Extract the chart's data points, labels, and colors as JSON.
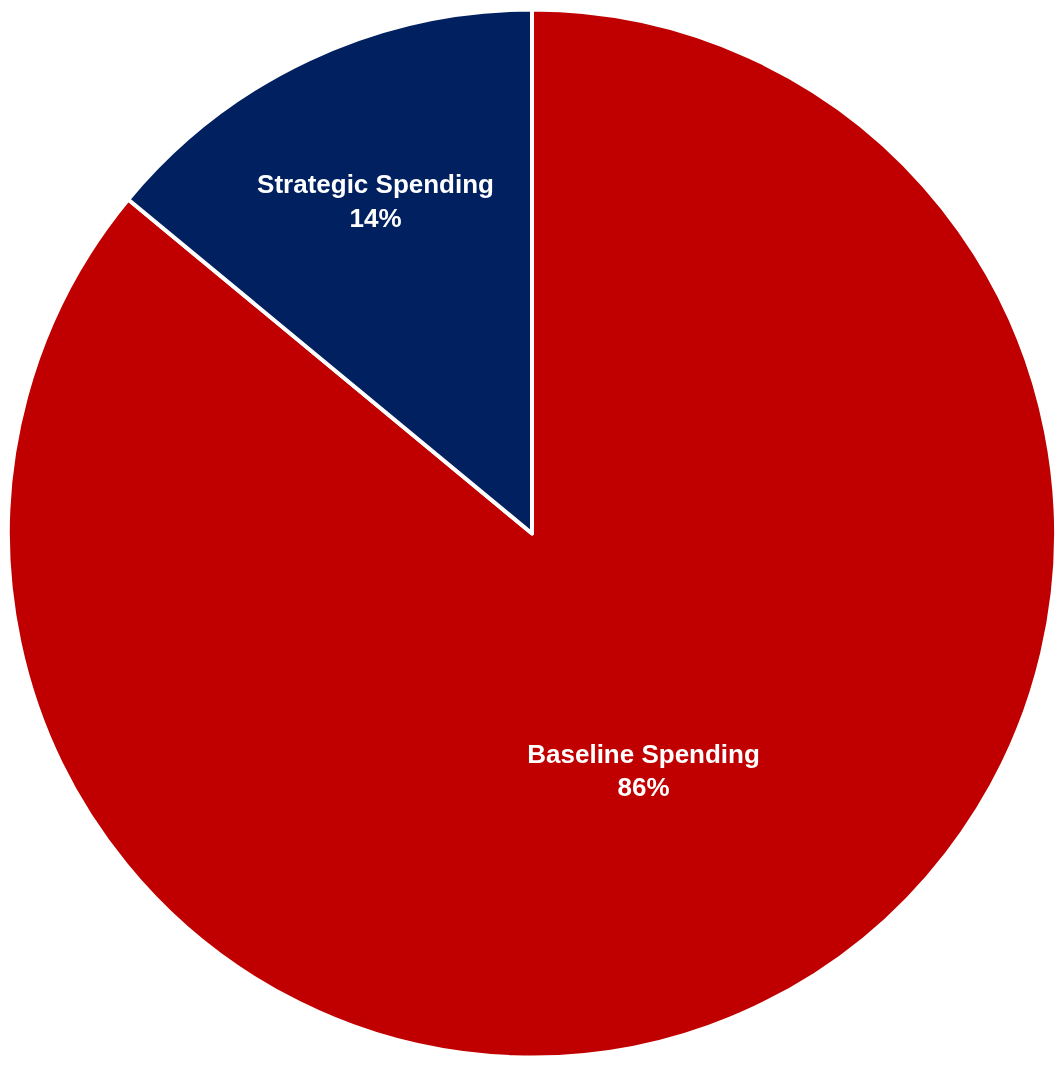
{
  "chart_data": {
    "type": "pie",
    "categories": [
      "Baseline Spending",
      "Strategic Spending"
    ],
    "values": [
      86,
      14
    ],
    "value_labels": [
      "86%",
      "14%"
    ],
    "colors": [
      "#c00000",
      "#002060"
    ],
    "legend": false
  }
}
